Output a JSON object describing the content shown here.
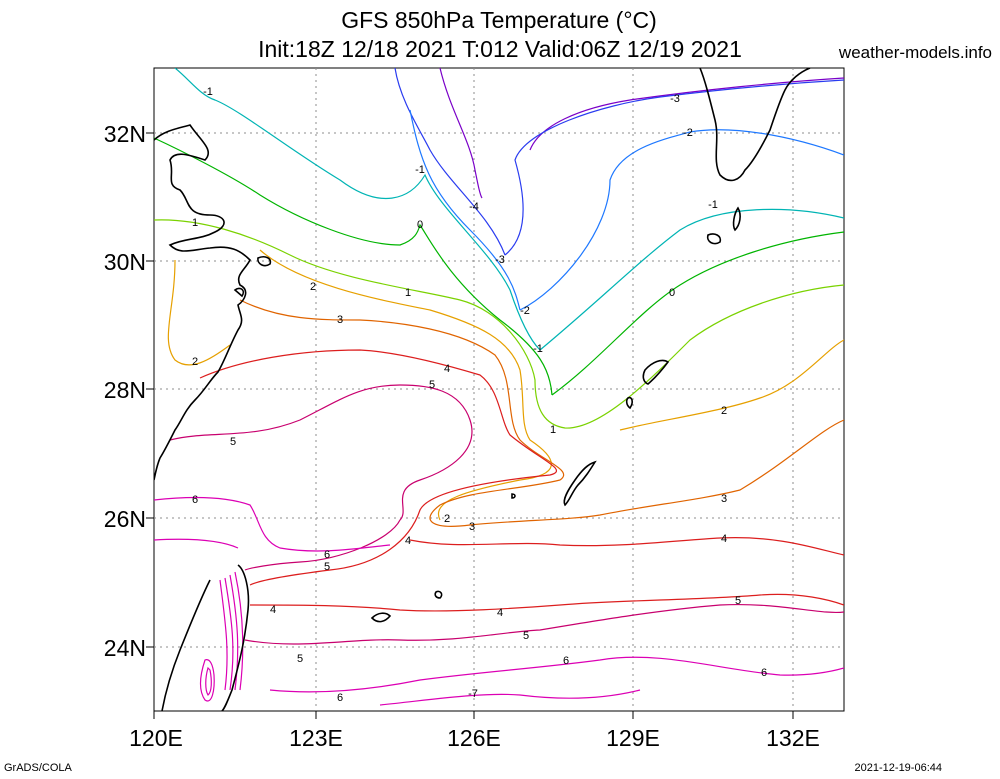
{
  "header": {
    "title_line1": "GFS 850hPa Temperature (°C)",
    "title_line2": "Init:18Z 12/18 2021 T:012 Valid:06Z 12/19 2021",
    "credit": "weather-models.info"
  },
  "footer": {
    "software": "GrADS/COLA",
    "timestamp": "2021-12-19-06:44"
  },
  "axes": {
    "lat_ticks": [
      "32N",
      "30N",
      "28N",
      "26N",
      "24N"
    ],
    "lon_ticks": [
      "120E",
      "123E",
      "126E",
      "129E",
      "132E"
    ]
  },
  "contour_labels": [
    "-1",
    "-1",
    "-4",
    "-3",
    "-3",
    "-2",
    "-2",
    "-1",
    "0",
    "1",
    "1",
    "0",
    "2",
    "3",
    "2",
    "1",
    "4",
    "5",
    "2",
    "5",
    "6",
    "2",
    "3",
    "3",
    "6",
    "5",
    "4",
    "4",
    "4",
    "4",
    "5",
    "5",
    "5",
    "6",
    "6",
    "-7",
    "6",
    "-1"
  ],
  "colors": {
    "t_minus4": "#7a00c8",
    "t_minus3": "#2a3cf0",
    "t_minus2": "#1e78ff",
    "t_minus1": "#00b4b4",
    "t_0": "#00b400",
    "t_1": "#7ad200",
    "t_2": "#e6a000",
    "t_3": "#e06400",
    "t_4": "#dc1e1e",
    "t_5": "#c8006e",
    "t_6": "#dc00b4",
    "coast": "#000000",
    "grid": "#8c8c8c"
  }
}
